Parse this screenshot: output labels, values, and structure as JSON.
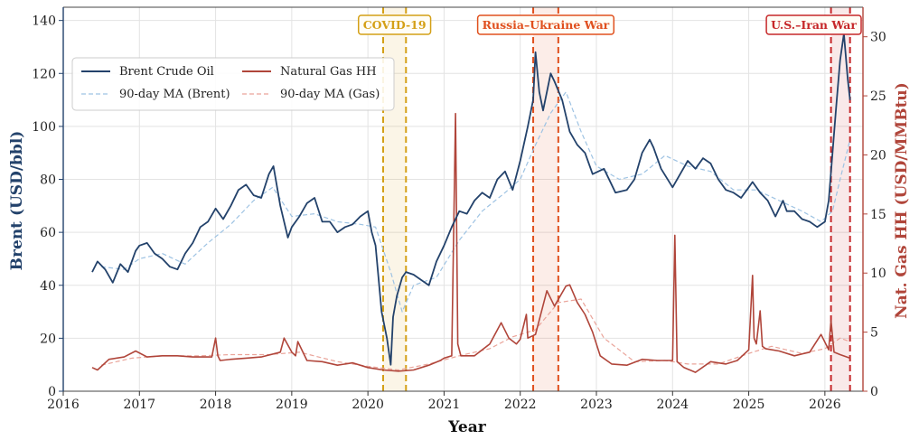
{
  "colors": {
    "brent": "#23426b",
    "brent_ma": "#9ec3e3",
    "gas": "#b0453a",
    "gas_ma": "#eaa49a",
    "covid": "#d4a017",
    "ukraine": "#e0501e",
    "iran": "#c6282a",
    "grid": "#e3e3e3"
  },
  "chart_data": {
    "type": "line",
    "xlabel": "Year",
    "ylabel_left": "Brent (USD/bbl)",
    "ylabel_right": "Nat. Gas HH (USD/MMBtu)",
    "xlim": [
      2016,
      2026.5
    ],
    "ylim_left": [
      0,
      145
    ],
    "ylim_right": [
      0,
      32.5
    ],
    "x_ticks": [
      "2016",
      "2017",
      "2018",
      "2019",
      "2020",
      "2021",
      "2022",
      "2023",
      "2024",
      "2025",
      "2026"
    ],
    "x_tick_values": [
      2016,
      2017,
      2018,
      2019,
      2020,
      2021,
      2022,
      2023,
      2024,
      2025,
      2026
    ],
    "y_ticks_left": [
      "0",
      "20",
      "40",
      "60",
      "80",
      "100",
      "120",
      "140"
    ],
    "y_tick_values_left": [
      0,
      20,
      40,
      60,
      80,
      100,
      120,
      140
    ],
    "y_ticks_right": [
      "0",
      "5",
      "10",
      "15",
      "20",
      "25",
      "30"
    ],
    "y_tick_values_right": [
      0,
      5,
      10,
      15,
      20,
      25,
      30
    ],
    "grid": true,
    "legend_placement": "top-left",
    "legend": [
      {
        "label": "Brent Crude Oil",
        "key": "brent",
        "style": "solid"
      },
      {
        "label": "Natural Gas HH",
        "key": "gas",
        "style": "solid"
      },
      {
        "label": "90-day MA (Brent)",
        "key": "brent_ma",
        "style": "dashed"
      },
      {
        "label": "90-day MA (Gas)",
        "key": "gas_ma",
        "style": "dashed"
      }
    ],
    "events": [
      {
        "label": "COVID-19",
        "start": 2020.2,
        "end": 2020.5,
        "color_key": "covid"
      },
      {
        "label": "Russia–Ukraine War",
        "start": 2022.17,
        "end": 2022.5,
        "color_key": "ukraine"
      },
      {
        "label": "U.S.–Iran War",
        "start": 2026.08,
        "end": 2026.33,
        "color_key": "iran"
      }
    ],
    "series": [
      {
        "name": "Brent Crude Oil",
        "axis": "left",
        "color_key": "brent",
        "x": [
          2016.38,
          2016.45,
          2016.55,
          2016.65,
          2016.75,
          2016.85,
          2016.95,
          2017.0,
          2017.1,
          2017.2,
          2017.3,
          2017.4,
          2017.5,
          2017.6,
          2017.7,
          2017.8,
          2017.9,
          2018.0,
          2018.1,
          2018.2,
          2018.3,
          2018.4,
          2018.5,
          2018.6,
          2018.7,
          2018.76,
          2018.85,
          2018.95,
          2019.0,
          2019.1,
          2019.2,
          2019.3,
          2019.4,
          2019.5,
          2019.6,
          2019.7,
          2019.8,
          2019.9,
          2020.0,
          2020.05,
          2020.1,
          2020.18,
          2020.25,
          2020.3,
          2020.33,
          2020.38,
          2020.45,
          2020.5,
          2020.6,
          2020.7,
          2020.8,
          2020.9,
          2021.0,
          2021.1,
          2021.2,
          2021.3,
          2021.4,
          2021.5,
          2021.6,
          2021.7,
          2021.8,
          2021.9,
          2022.0,
          2022.1,
          2022.17,
          2022.2,
          2022.25,
          2022.3,
          2022.4,
          2022.45,
          2022.55,
          2022.65,
          2022.75,
          2022.85,
          2022.95,
          2023.1,
          2023.25,
          2023.4,
          2023.5,
          2023.6,
          2023.7,
          2023.75,
          2023.85,
          2024.0,
          2024.1,
          2024.2,
          2024.3,
          2024.4,
          2024.5,
          2024.6,
          2024.7,
          2024.8,
          2024.9,
          2025.0,
          2025.05,
          2025.15,
          2025.25,
          2025.35,
          2025.45,
          2025.5,
          2025.6,
          2025.7,
          2025.8,
          2025.9,
          2026.0,
          2026.05,
          2026.1,
          2026.15,
          2026.2,
          2026.25,
          2026.3,
          2026.33
        ],
        "values": [
          45,
          49,
          46,
          41,
          48,
          45,
          53,
          55,
          56,
          52,
          50,
          47,
          46,
          52,
          56,
          62,
          64,
          69,
          65,
          70,
          76,
          78,
          74,
          73,
          82,
          85,
          70,
          58,
          62,
          66,
          71,
          73,
          64,
          64,
          60,
          62,
          63,
          66,
          68,
          60,
          55,
          30,
          20,
          10,
          28,
          36,
          43,
          45,
          44,
          42,
          40,
          49,
          55,
          62,
          68,
          67,
          72,
          75,
          73,
          80,
          83,
          76,
          87,
          100,
          110,
          128,
          113,
          106,
          120,
          117,
          110,
          98,
          93,
          90,
          82,
          84,
          75,
          76,
          80,
          90,
          95,
          92,
          84,
          77,
          82,
          87,
          84,
          88,
          86,
          80,
          76,
          75,
          73,
          77,
          79,
          75,
          72,
          66,
          72,
          68,
          68,
          65,
          64,
          62,
          64,
          72,
          90,
          108,
          125,
          135,
          118,
          110
        ]
      },
      {
        "name": "90-day MA (Brent)",
        "axis": "left",
        "color_key": "brent_ma",
        "dashed": true,
        "x": [
          2016.5,
          2016.8,
          2017.0,
          2017.3,
          2017.6,
          2017.9,
          2018.2,
          2018.5,
          2018.75,
          2019.0,
          2019.3,
          2019.6,
          2019.9,
          2020.1,
          2020.3,
          2020.45,
          2020.6,
          2020.9,
          2021.2,
          2021.5,
          2021.8,
          2022.0,
          2022.2,
          2022.4,
          2022.6,
          2022.8,
          2023.0,
          2023.3,
          2023.6,
          2023.9,
          2024.2,
          2024.5,
          2024.8,
          2025.1,
          2025.4,
          2025.7,
          2025.95,
          2026.1,
          2026.2,
          2026.33
        ],
        "values": [
          47,
          46,
          50,
          52,
          48,
          56,
          63,
          72,
          77,
          66,
          67,
          64,
          63,
          62,
          45,
          30,
          40,
          43,
          57,
          68,
          75,
          80,
          93,
          105,
          113,
          98,
          85,
          80,
          82,
          89,
          85,
          83,
          76,
          76,
          72,
          68,
          64,
          68,
          80,
          95
        ]
      },
      {
        "name": "Natural Gas HH",
        "axis": "right",
        "color_key": "gas",
        "x": [
          2016.38,
          2016.45,
          2016.6,
          2016.8,
          2016.95,
          2017.1,
          2017.3,
          2017.5,
          2017.7,
          2017.95,
          2018.0,
          2018.03,
          2018.06,
          2018.2,
          2018.4,
          2018.6,
          2018.85,
          2018.9,
          2019.0,
          2019.05,
          2019.08,
          2019.2,
          2019.4,
          2019.6,
          2019.8,
          2020.0,
          2020.2,
          2020.4,
          2020.6,
          2020.8,
          2020.95,
          2021.0,
          2021.1,
          2021.15,
          2021.18,
          2021.22,
          2021.4,
          2021.6,
          2021.75,
          2021.85,
          2021.95,
          2022.0,
          2022.08,
          2022.1,
          2022.2,
          2022.35,
          2022.45,
          2022.6,
          2022.65,
          2022.75,
          2022.85,
          2022.95,
          2023.05,
          2023.2,
          2023.4,
          2023.6,
          2023.8,
          2024.0,
          2024.03,
          2024.06,
          2024.15,
          2024.3,
          2024.5,
          2024.7,
          2024.85,
          2025.0,
          2025.05,
          2025.07,
          2025.1,
          2025.15,
          2025.18,
          2025.22,
          2025.4,
          2025.6,
          2025.8,
          2025.95,
          2026.05,
          2026.08,
          2026.12,
          2026.2,
          2026.33
        ],
        "values": [
          2.0,
          1.8,
          2.7,
          2.9,
          3.4,
          2.9,
          3.0,
          3.0,
          2.9,
          2.9,
          4.5,
          3.0,
          2.6,
          2.7,
          2.8,
          2.9,
          3.3,
          4.5,
          3.3,
          3.0,
          4.2,
          2.6,
          2.5,
          2.2,
          2.4,
          2.0,
          1.8,
          1.7,
          1.8,
          2.2,
          2.6,
          2.8,
          3.0,
          23.5,
          4.0,
          3.0,
          3.0,
          4.0,
          5.8,
          4.5,
          4.0,
          4.4,
          6.5,
          4.5,
          4.8,
          8.5,
          7.2,
          8.9,
          9.0,
          7.5,
          6.5,
          5.0,
          3.0,
          2.3,
          2.2,
          2.7,
          2.6,
          2.6,
          13.2,
          2.5,
          2.0,
          1.6,
          2.5,
          2.3,
          2.6,
          3.5,
          9.8,
          4.5,
          4.0,
          6.8,
          3.8,
          3.6,
          3.4,
          3.0,
          3.3,
          4.8,
          3.5,
          6.0,
          3.3,
          3.1,
          2.8
        ]
      },
      {
        "name": "90-day MA (Gas)",
        "axis": "right",
        "color_key": "gas_ma",
        "dashed": true,
        "x": [
          2016.5,
          2016.9,
          2017.3,
          2017.8,
          2018.2,
          2018.7,
          2019.1,
          2019.6,
          2020.0,
          2020.4,
          2020.8,
          2021.2,
          2021.6,
          2021.9,
          2022.2,
          2022.5,
          2022.8,
          2023.1,
          2023.5,
          2023.9,
          2024.2,
          2024.6,
          2025.0,
          2025.3,
          2025.7,
          2026.0,
          2026.2,
          2026.33
        ],
        "values": [
          2.2,
          2.8,
          3.0,
          3.0,
          3.1,
          3.1,
          3.3,
          2.5,
          2.1,
          1.8,
          2.3,
          3.0,
          3.6,
          4.6,
          5.2,
          7.5,
          7.8,
          4.5,
          2.5,
          2.6,
          2.3,
          2.3,
          3.2,
          3.8,
          3.2,
          3.6,
          4.5,
          4.2
        ]
      }
    ]
  }
}
